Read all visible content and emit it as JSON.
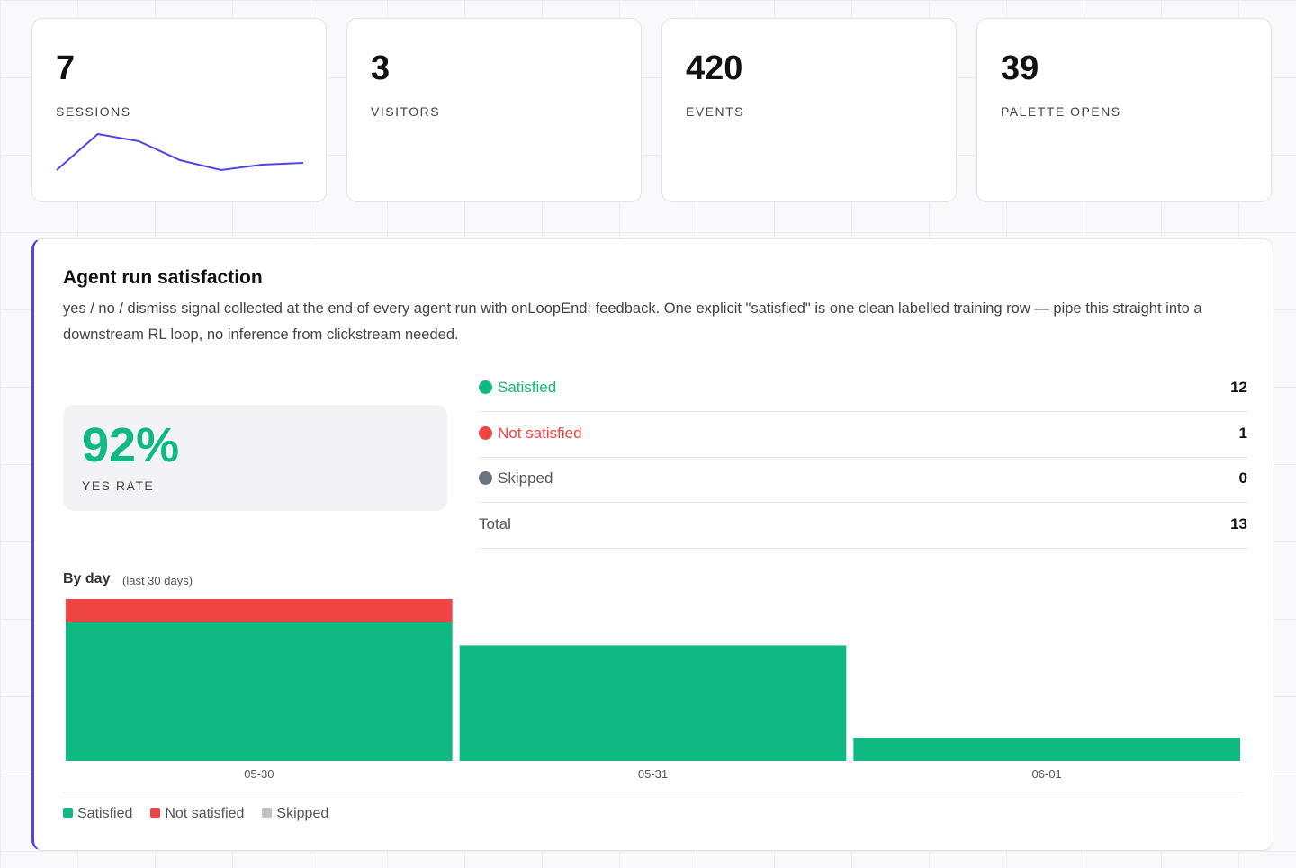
{
  "stats": [
    {
      "value": "7",
      "label": "SESSIONS",
      "sparkline": {
        "values": [
          1,
          3,
          2.6,
          1.55,
          1,
          1.3,
          1.4
        ],
        "color": "#4f46e5"
      }
    },
    {
      "value": "3",
      "label": "VISITORS"
    },
    {
      "value": "420",
      "label": "EVENTS"
    },
    {
      "value": "39",
      "label": "PALETTE OPENS"
    }
  ],
  "panel": {
    "title": "Agent run satisfaction",
    "description": "yes / no / dismiss signal collected at the end of every agent run with onLoopEnd: feedback. One explicit \"satisfied\" is one clean labelled training row — pipe this straight into a downstream RL loop, no inference from clickstream needed.",
    "rate": {
      "value": "92%",
      "label": "YES RATE"
    },
    "breakdown": [
      {
        "name": "Satisfied",
        "value": "12",
        "color": "#10b981"
      },
      {
        "name": "Not satisfied",
        "value": "1",
        "color": "#ef4444"
      },
      {
        "name": "Skipped",
        "value": "0",
        "color": "#6b7280"
      },
      {
        "name": "Total",
        "value": "13"
      }
    ]
  },
  "chart_data": {
    "type": "bar",
    "stacked": true,
    "title": "By day",
    "subtitle": "(last 30 days)",
    "categories": [
      "05-30",
      "05-31",
      "06-01"
    ],
    "series": [
      {
        "name": "Satisfied",
        "color": "#10b981",
        "values": [
          6,
          5,
          1
        ]
      },
      {
        "name": "Not satisfied",
        "color": "#ef4444",
        "values": [
          1,
          0,
          0
        ]
      },
      {
        "name": "Skipped",
        "color": "#c4c4c4",
        "values": [
          0,
          0,
          0
        ]
      }
    ],
    "ylim": [
      0,
      7
    ]
  }
}
